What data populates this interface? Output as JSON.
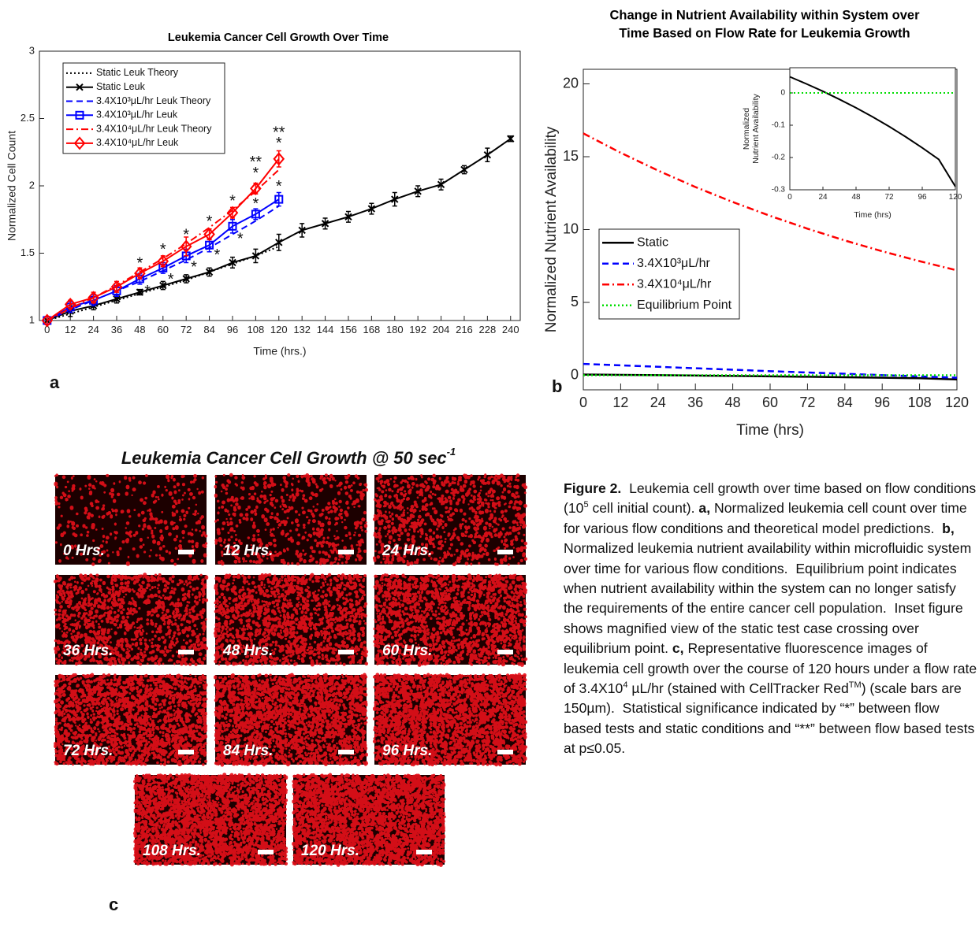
{
  "chart_data": [
    {
      "type": "line",
      "title": [
        "Leukemia Cancer Cell Growth Over Time"
      ],
      "xlabel": [
        "Time (hrs.)"
      ],
      "ylabel": [
        "Normalized Cell Count"
      ],
      "xlim": [
        -4,
        245
      ],
      "ylim": [
        1,
        3
      ],
      "xticks": [
        0,
        12,
        24,
        36,
        48,
        60,
        72,
        84,
        96,
        108,
        120,
        132,
        144,
        156,
        168,
        180,
        192,
        204,
        216,
        228,
        240
      ],
      "yticks": [
        1,
        1.5,
        2,
        2.5,
        3
      ],
      "legend": "upper left",
      "series": [
        {
          "name": "Static Leuk Theory",
          "color": "#000000",
          "dash": "dotted",
          "x": [
            0,
            12,
            24,
            36,
            48,
            60,
            72,
            84,
            96,
            108,
            120
          ],
          "values": [
            1.0,
            1.05,
            1.1,
            1.15,
            1.2,
            1.25,
            1.3,
            1.36,
            1.42,
            1.48,
            1.55
          ]
        },
        {
          "name": "Static Leuk",
          "color": "#000000",
          "dash": "solid",
          "marker": "x",
          "x": [
            0,
            12,
            24,
            36,
            48,
            60,
            72,
            84,
            96,
            108,
            120,
            132,
            144,
            156,
            168,
            180,
            192,
            204,
            216,
            228,
            240
          ],
          "values": [
            1.0,
            1.07,
            1.11,
            1.16,
            1.21,
            1.26,
            1.31,
            1.36,
            1.43,
            1.48,
            1.58,
            1.67,
            1.72,
            1.77,
            1.83,
            1.9,
            1.96,
            2.01,
            2.12,
            2.23,
            2.35
          ],
          "errors": [
            0.03,
            0.04,
            0.03,
            0.03,
            0.02,
            0.03,
            0.03,
            0.03,
            0.04,
            0.05,
            0.06,
            0.05,
            0.04,
            0.04,
            0.04,
            0.05,
            0.04,
            0.04,
            0.03,
            0.05,
            0.02
          ]
        },
        {
          "name": "3.4X10³μL/hr Leuk Theory",
          "color": "#0000ff",
          "dash": "dashed",
          "x": [
            0,
            12,
            24,
            36,
            48,
            60,
            72,
            84,
            96,
            108,
            120
          ],
          "values": [
            1.0,
            1.08,
            1.15,
            1.22,
            1.29,
            1.37,
            1.45,
            1.54,
            1.64,
            1.74,
            1.85
          ]
        },
        {
          "name": "3.4X10³μL/hr Leuk",
          "color": "#0000ff",
          "dash": "solid",
          "marker": "square",
          "x": [
            0,
            12,
            24,
            36,
            48,
            60,
            72,
            84,
            96,
            108,
            120
          ],
          "values": [
            1.0,
            1.1,
            1.15,
            1.22,
            1.31,
            1.39,
            1.48,
            1.56,
            1.7,
            1.79,
            1.9
          ],
          "errors": [
            0.03,
            0.04,
            0.04,
            0.04,
            0.04,
            0.04,
            0.05,
            0.05,
            0.05,
            0.04,
            0.05
          ]
        },
        {
          "name": "3.4X10⁴μL/hr Leuk Theory",
          "color": "#ff0000",
          "dash": "dashdot",
          "x": [
            0,
            12,
            24,
            36,
            48,
            60,
            72,
            84,
            96,
            108,
            120
          ],
          "values": [
            1.0,
            1.09,
            1.17,
            1.26,
            1.36,
            1.46,
            1.57,
            1.69,
            1.82,
            1.96,
            2.12
          ]
        },
        {
          "name": "3.4X10⁴μL/hr Leuk",
          "color": "#ff0000",
          "dash": "solid",
          "marker": "diamond",
          "x": [
            0,
            12,
            24,
            36,
            48,
            60,
            72,
            84,
            96,
            108,
            120
          ],
          "values": [
            1.0,
            1.12,
            1.17,
            1.25,
            1.35,
            1.44,
            1.55,
            1.64,
            1.8,
            1.98,
            2.2
          ],
          "errors": [
            0.03,
            0.03,
            0.04,
            0.04,
            0.04,
            0.04,
            0.07,
            0.04,
            0.04,
            0.04,
            0.06
          ]
        }
      ],
      "annotations": [
        {
          "x": 48,
          "y": 1.45,
          "text": "*"
        },
        {
          "x": 60,
          "y": 1.55,
          "text": "*"
        },
        {
          "x": 72,
          "y": 1.66,
          "text": "*"
        },
        {
          "x": 84,
          "y": 1.76,
          "text": "*"
        },
        {
          "x": 96,
          "y": 1.91,
          "text": "*"
        },
        {
          "x": 108,
          "y": 2.12,
          "text": "*"
        },
        {
          "x": 108,
          "y": 2.2,
          "text": "**"
        },
        {
          "x": 120,
          "y": 2.34,
          "text": "*"
        },
        {
          "x": 120,
          "y": 2.42,
          "text": "**"
        },
        {
          "x": 52,
          "y": 1.24,
          "text": "*"
        },
        {
          "x": 64,
          "y": 1.33,
          "text": "*"
        },
        {
          "x": 76,
          "y": 1.42,
          "text": "*"
        },
        {
          "x": 88,
          "y": 1.51,
          "text": "*"
        },
        {
          "x": 100,
          "y": 1.63,
          "text": "*"
        },
        {
          "x": 108,
          "y": 1.89,
          "text": "*"
        },
        {
          "x": 120,
          "y": 2.02,
          "text": "*"
        }
      ]
    },
    {
      "type": "line",
      "title": [
        "Change in Nutrient Availability within System over",
        "Time Based on Flow Rate for Leukemia Growth"
      ],
      "xlabel": [
        "Time (hrs)"
      ],
      "ylabel": [
        "Normalized Nutrient Availability"
      ],
      "xlim": [
        0,
        120
      ],
      "ylim": [
        -1,
        21
      ],
      "xticks": [
        0,
        12,
        24,
        36,
        48,
        60,
        72,
        84,
        96,
        108,
        120
      ],
      "yticks": [
        0,
        5,
        10,
        15,
        20
      ],
      "legend": "lower left",
      "series": [
        {
          "name": "Static",
          "color": "#000000",
          "dash": "solid",
          "x": [
            0,
            12,
            24,
            36,
            48,
            60,
            72,
            84,
            96,
            108,
            120
          ],
          "values": [
            0.05,
            0.028,
            0.005,
            -0.02,
            -0.046,
            -0.074,
            -0.104,
            -0.136,
            -0.17,
            -0.206,
            -0.29
          ]
        },
        {
          "name": "3.4X10³μL/hr",
          "color": "#0000ff",
          "dash": "dashed",
          "x": [
            0,
            12,
            24,
            36,
            48,
            60,
            72,
            84,
            96,
            108,
            120
          ],
          "values": [
            0.78,
            0.68,
            0.58,
            0.48,
            0.38,
            0.28,
            0.19,
            0.1,
            0.01,
            -0.08,
            -0.17
          ]
        },
        {
          "name": "3.4X10⁴μL/hr",
          "color": "#ff0000",
          "dash": "dashdot",
          "x": [
            0,
            12,
            24,
            36,
            48,
            60,
            72,
            84,
            96,
            108,
            120
          ],
          "values": [
            16.6,
            15.27,
            14.05,
            12.92,
            11.89,
            10.94,
            10.06,
            9.25,
            8.51,
            7.83,
            7.2
          ]
        },
        {
          "name": "Equilibrium Point",
          "color": "#00dd00",
          "dash": "dotted",
          "x": [
            0,
            120
          ],
          "values": [
            0,
            0
          ]
        }
      ]
    },
    {
      "type": "line",
      "xlabel": [
        "Time (hrs)"
      ],
      "ylabel": [
        "Normalized",
        "Nutrient Availability"
      ],
      "xlim": [
        0,
        120
      ],
      "ylim": [
        -0.3,
        0.078
      ],
      "xticks": [
        0,
        24,
        48,
        72,
        96,
        120
      ],
      "yticks": [
        0,
        -0.1,
        -0.2,
        -0.3
      ],
      "series": [
        {
          "color": "#000000",
          "dash": "solid",
          "x": [
            0,
            12,
            24,
            36,
            48,
            60,
            72,
            84,
            96,
            108,
            120
          ],
          "values": [
            0.05,
            0.028,
            0.005,
            -0.02,
            -0.046,
            -0.074,
            -0.104,
            -0.136,
            -0.17,
            -0.206,
            -0.29
          ]
        },
        {
          "color": "#00dd00",
          "dash": "dotted",
          "x": [
            0,
            120
          ],
          "values": [
            0,
            0
          ]
        }
      ]
    }
  ],
  "panel_labels": [
    "a",
    "b",
    "c"
  ],
  "images": {
    "title": "Leukemia Cancer Cell Growth @ 50 sec",
    "title_sup": "-1",
    "labels": [
      "0 Hrs.",
      "12 Hrs.",
      "24 Hrs.",
      "36 Hrs.",
      "48 Hrs.",
      "60 Hrs.",
      "72 Hrs.",
      "84 Hrs.",
      "96 Hrs.",
      "108 Hrs.",
      "120 Hrs."
    ]
  },
  "caption": [
    {
      "text": "Figure 2.",
      "bold": true
    },
    {
      "text": "  Leukemia cell growth over time based on flow conditions (10"
    },
    {
      "text": "5",
      "sup": true
    },
    {
      "text": " cell initial count). "
    },
    {
      "text": "a,",
      "bold": true
    },
    {
      "text": " Normalized leukemia cell count over time for various flow conditions and theoretical model predictions.  "
    },
    {
      "text": "b,",
      "bold": true
    },
    {
      "text": " Normalized leukemia nutrient availability within microfluidic system over time for various flow conditions.  Equilibrium point indicates when nutrient availability within the system can no longer satisfy the requirements of the entire cancer cell population.  Inset figure shows magnified view of the static test case crossing over equilibrium point. "
    },
    {
      "text": "c,",
      "bold": true
    },
    {
      "text": " Representative fluorescence images of leukemia cell growth over the course of 120 hours under a flow rate of 3.4X10"
    },
    {
      "text": "4",
      "sup": true
    },
    {
      "text": " µL/hr (stained with CellTracker Red"
    },
    {
      "text": "TM",
      "sup": true
    },
    {
      "text": ") (scale bars are 150µm).  Statistical significance indicated by “*” between flow based tests and static conditions and “**” between flow based tests at p≤0.05."
    }
  ]
}
